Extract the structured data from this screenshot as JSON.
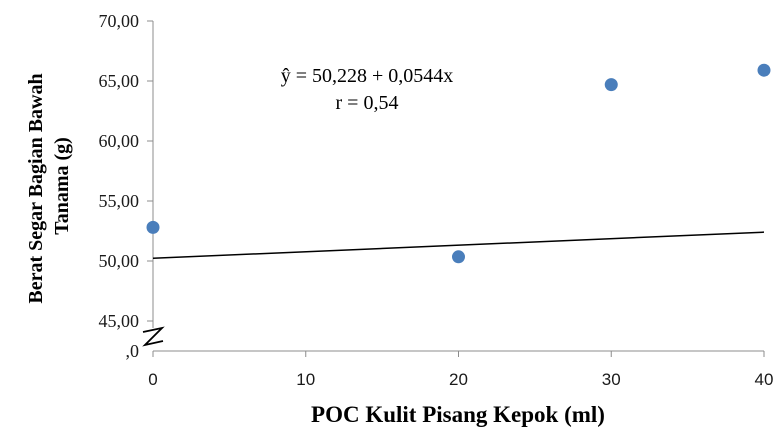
{
  "chart_data": {
    "type": "scatter",
    "title": "",
    "xlabel": "POC Kulit Pisang Kepok (ml)",
    "ylabel_lines": [
      "Berat Segar Bagian Bawah",
      "Tanama (g)"
    ],
    "x_ticks": [
      "0",
      "10",
      "20",
      "30",
      "40"
    ],
    "y_ticks": [
      "45,00",
      "50,00",
      "55,00",
      "60,00",
      "65,00",
      "70,00"
    ],
    "y_tick_partial": ",0",
    "xlim": [
      0,
      40
    ],
    "ylim_visible": [
      42.5,
      70
    ],
    "grid": false,
    "legend": "none",
    "series": [
      {
        "x": [
          0,
          20,
          30,
          40
        ],
        "y": [
          52.8,
          50.35,
          64.7,
          65.9
        ],
        "color": "#4a7ebb"
      }
    ],
    "trendline": {
      "intercept": 50.228,
      "slope": 0.0544,
      "color": "#000000"
    },
    "annotation": {
      "equation": "ŷ = 50,228 + 0,0544x",
      "r": "r = 0,54"
    }
  }
}
